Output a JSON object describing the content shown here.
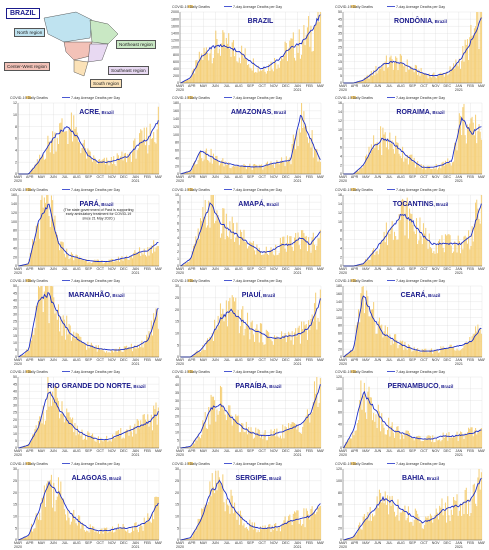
{
  "map": {
    "country": "BRAZIL",
    "regions": [
      {
        "name": "North region",
        "color": "#bfe3f0"
      },
      {
        "name": "Northeast region",
        "color": "#c9e8c4"
      },
      {
        "name": "Center-West region",
        "color": "#f3c2b8"
      },
      {
        "name": "Southeast region",
        "color": "#e8d9f2"
      },
      {
        "name": "South region",
        "color": "#fbe2b8"
      }
    ]
  },
  "legend": {
    "bar": "COVID-19  Daily Deaths",
    "line": "7-day Average Deaths per Day"
  },
  "colors": {
    "bar": "#f5d07a",
    "line": "#1d2fc7"
  },
  "months": [
    "MAR",
    "APR",
    "MAY",
    "JUN",
    "JUL",
    "AUG",
    "SEP",
    "OCT",
    "NOV",
    "DEC",
    "JAN",
    "FEB",
    "MAR"
  ],
  "years": [
    "2020",
    "2021"
  ],
  "chart_data": [
    {
      "type": "bar+line",
      "name": "BRAZIL",
      "suffix": "",
      "ymax": 2000,
      "yticks": [
        0,
        200,
        400,
        600,
        800,
        1000,
        1200,
        1400,
        1600,
        1800,
        2000
      ],
      "avg": [
        0,
        150,
        700,
        1000,
        1050,
        1000,
        850,
        600,
        400,
        500,
        700,
        1000,
        1100,
        1400,
        1950
      ]
    },
    {
      "type": "bar+line",
      "name": "RONDÔNIA",
      "suffix": ", Brazil",
      "ymax": 50,
      "yticks": [
        0,
        5,
        10,
        15,
        20,
        25,
        30,
        35,
        40,
        45,
        50
      ],
      "avg": [
        0,
        0,
        2,
        7,
        13,
        15,
        14,
        10,
        7,
        5,
        6,
        9,
        18,
        30,
        45
      ]
    },
    {
      "type": "bar+line",
      "name": "ACRE",
      "suffix": ", Brazil",
      "ymax": 12,
      "yticks": [
        0,
        2,
        4,
        6,
        8,
        10,
        12
      ],
      "avg": [
        0,
        0,
        2,
        5,
        7,
        8,
        6,
        3,
        2,
        2,
        2.5,
        3,
        5,
        6,
        9
      ]
    },
    {
      "type": "bar+line",
      "name": "AMAZONAS",
      "suffix": ", Brazil",
      "ymax": 180,
      "yticks": [
        0,
        20,
        40,
        60,
        80,
        100,
        120,
        140,
        160,
        180
      ],
      "avg": [
        0,
        8,
        60,
        45,
        30,
        25,
        20,
        18,
        18,
        25,
        30,
        35,
        150,
        90,
        35
      ]
    },
    {
      "type": "bar+line",
      "name": "RORAIMA",
      "suffix": ", Brazil",
      "ymax": 16,
      "yticks": [
        0,
        2,
        4,
        6,
        8,
        10,
        12,
        14,
        16
      ],
      "avg": [
        0,
        0,
        2,
        6,
        8,
        7,
        5,
        3,
        1.5,
        1.5,
        2,
        3,
        13,
        9,
        11
      ]
    },
    {
      "type": "bar+line",
      "name": "PARÁ",
      "suffix": ", Brazil",
      "ymax": 160,
      "yticks": [
        0,
        20,
        40,
        60,
        80,
        100,
        120,
        140,
        160
      ],
      "note": "(The state government of Pará is supporting early ambulatory treatment for COVID-19 since 21 May 2020.)",
      "avg": [
        0,
        5,
        100,
        140,
        50,
        25,
        18,
        12,
        10,
        10,
        15,
        20,
        30,
        35,
        55
      ]
    },
    {
      "type": "bar+line",
      "name": "AMAPÁ",
      "suffix": ", Brazil",
      "ymax": 10,
      "yticks": [
        0,
        1,
        2,
        3,
        4,
        5,
        6,
        7,
        8,
        9,
        10
      ],
      "avg": [
        0,
        1,
        5,
        9,
        6,
        5,
        4,
        3,
        2,
        2,
        3,
        3,
        4,
        3,
        5
      ]
    },
    {
      "type": "bar+line",
      "name": "TOCANTINS",
      "suffix": ", Brazil",
      "ymax": 16,
      "yticks": [
        0,
        2,
        4,
        6,
        8,
        10,
        12,
        14,
        16
      ],
      "avg": [
        0,
        0,
        0.5,
        3,
        6,
        9,
        12,
        10,
        7,
        5,
        5,
        5,
        5,
        7,
        14
      ]
    },
    {
      "type": "bar+line",
      "name": "MARANHÃO",
      "suffix": ", Brazil",
      "ymax": 50,
      "yticks": [
        0,
        5,
        10,
        15,
        20,
        25,
        30,
        35,
        40,
        45,
        50
      ],
      "avg": [
        0,
        5,
        40,
        44,
        30,
        18,
        12,
        8,
        6,
        5,
        5,
        6,
        8,
        12,
        35
      ]
    },
    {
      "type": "bar+line",
      "name": "PIAUÍ",
      "suffix": ", Brazil",
      "ymax": 30,
      "yticks": [
        0,
        5,
        10,
        15,
        20,
        25,
        30
      ],
      "avg": [
        0,
        0,
        3,
        8,
        16,
        20,
        16,
        12,
        10,
        8,
        8,
        9,
        10,
        13,
        24
      ]
    },
    {
      "type": "bar+line",
      "name": "CEARÁ",
      "suffix": ", Brazil",
      "ymax": 180,
      "yticks": [
        0,
        20,
        40,
        60,
        80,
        100,
        120,
        140,
        160,
        180
      ],
      "avg": [
        0,
        20,
        160,
        100,
        60,
        45,
        30,
        20,
        15,
        15,
        20,
        25,
        30,
        40,
        75
      ]
    },
    {
      "type": "bar+line",
      "name": "RIO GRANDE DO NORTE",
      "suffix": ", Brazil",
      "ymax": 50,
      "yticks": [
        0,
        5,
        10,
        15,
        20,
        25,
        30,
        35,
        40,
        45,
        50
      ],
      "avg": [
        0,
        2,
        15,
        40,
        28,
        18,
        12,
        8,
        6,
        6,
        9,
        12,
        15,
        18,
        25
      ]
    },
    {
      "type": "bar+line",
      "name": "PARAÍBA",
      "suffix": ", Brazil",
      "ymax": 45,
      "yticks": [
        0,
        5,
        10,
        15,
        20,
        25,
        30,
        35,
        40,
        45
      ],
      "avg": [
        0,
        1,
        10,
        25,
        28,
        20,
        14,
        10,
        8,
        8,
        10,
        12,
        15,
        22,
        40
      ]
    },
    {
      "type": "bar+line",
      "name": "PERNAMBUCO",
      "suffix": ", Brazil",
      "ymax": 120,
      "yticks": [
        0,
        20,
        40,
        60,
        80,
        100,
        120
      ],
      "avg": [
        0,
        30,
        95,
        70,
        45,
        30,
        25,
        18,
        15,
        15,
        20,
        20,
        22,
        25,
        30
      ]
    },
    {
      "type": "bar+line",
      "name": "ALAGOAS",
      "suffix": ", Brazil",
      "ymax": 30,
      "yticks": [
        0,
        5,
        10,
        15,
        20,
        25,
        30
      ],
      "avg": [
        0,
        2,
        12,
        24,
        20,
        12,
        8,
        5,
        4,
        4,
        5,
        5,
        6,
        8,
        16
      ]
    },
    {
      "type": "bar+line",
      "name": "SERGIPE",
      "suffix": ", Brazil",
      "ymax": 30,
      "yticks": [
        0,
        5,
        10,
        15,
        20,
        25,
        30
      ],
      "avg": [
        0,
        1,
        8,
        20,
        25,
        15,
        10,
        6,
        5,
        5,
        6,
        8,
        9,
        10,
        15
      ]
    },
    {
      "type": "bar+line",
      "name": "BAHIA",
      "suffix": ", Brazil",
      "ymax": 120,
      "yticks": [
        0,
        20,
        40,
        60,
        80,
        100,
        120
      ],
      "avg": [
        0,
        5,
        30,
        50,
        70,
        65,
        50,
        40,
        30,
        35,
        50,
        55,
        60,
        70,
        105
      ]
    }
  ]
}
